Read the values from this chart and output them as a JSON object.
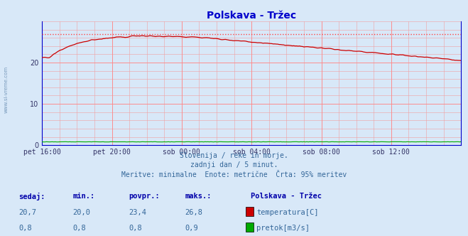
{
  "title": "Polskava - Tržec",
  "background_color": "#d8e8f8",
  "x_labels": [
    "pet 16:00",
    "pet 20:00",
    "sob 00:00",
    "sob 04:00",
    "sob 08:00",
    "sob 12:00"
  ],
  "x_ticks_pos": [
    0,
    48,
    96,
    144,
    192,
    240
  ],
  "y_ticks": [
    0,
    10,
    20
  ],
  "ylim": [
    0,
    30
  ],
  "xlim": [
    0,
    288
  ],
  "max_line_y": 26.8,
  "temp_color": "#cc0000",
  "flow_color": "#00aa00",
  "dotted_max_color": "#ff4444",
  "subtitle1": "Slovenija / reke in morje.",
  "subtitle2": "zadnji dan / 5 minut.",
  "subtitle3": "Meritve: minimalne  Enote: metrične  Črta: 95% meritev",
  "legend_title": "Polskava - Tržec",
  "legend_items": [
    {
      "label": "temperatura[C]",
      "color": "#cc0000"
    },
    {
      "label": "pretok[m3/s]",
      "color": "#00aa00"
    }
  ],
  "stats_headers": [
    "sedaj:",
    "min.:",
    "povpr.:",
    "maks.:"
  ],
  "stats_temp": [
    "20,7",
    "20,0",
    "23,4",
    "26,8"
  ],
  "stats_flow": [
    "0,8",
    "0,8",
    "0,8",
    "0,9"
  ],
  "watermark": "www.si-vreme.com",
  "left_label": "www.si-vreme.com",
  "title_color": "#0000cc",
  "text_color": "#336699",
  "header_color": "#0000aa",
  "spine_color": "#0000cc"
}
